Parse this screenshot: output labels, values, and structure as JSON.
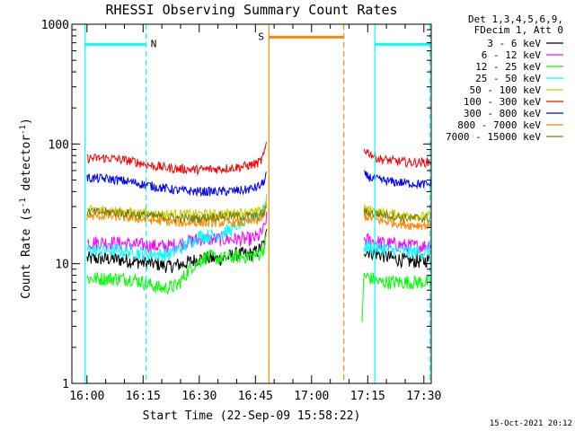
{
  "chart_data": {
    "type": "line",
    "title": "RHESSI Observing Summary Count Rates",
    "xlabel": "Start Time (22-Sep-09 15:58:22)",
    "ylabel_prefix": "Count Rate (s",
    "ylabel_sup1": "-1",
    "ylabel_mid": " detector",
    "ylabel_sup2": "-1",
    "ylabel_suffix": ")",
    "y_scale": "log",
    "ylim": [
      1,
      1000
    ],
    "xlim": [
      -1.6,
      36.5
    ],
    "x_unit": "minutes after 16:00",
    "x_ticks": [
      {
        "value": 0,
        "label": "16:00"
      },
      {
        "value": 15,
        "label": "16:15"
      },
      {
        "value": 30,
        "label": "16:30"
      },
      {
        "value": 45,
        "label": "16:45"
      },
      {
        "value": 60,
        "label": "17:00"
      },
      {
        "value": 75,
        "label": "17:15"
      },
      {
        "value": 90,
        "label": "17:30"
      }
    ],
    "y_ticks": [
      {
        "value": 1,
        "label": "1"
      },
      {
        "value": 10,
        "label": "10"
      },
      {
        "value": 100,
        "label": "100"
      },
      {
        "value": 1000,
        "label": "1000"
      }
    ],
    "legend": {
      "position": "right",
      "header": [
        "Det 1,3,4,5,6,9,",
        "FDecim 1, Att 0"
      ]
    },
    "series": [
      {
        "name": "3 - 6 keV",
        "color": "#000000",
        "segments": [
          {
            "x": [
              0,
              6,
              12,
              18,
              22,
              26,
              30,
              36,
              40,
              44,
              46,
              47.5,
              48
            ],
            "y": [
              11,
              11,
              10.5,
              10,
              9.5,
              10,
              11,
              11,
              12,
              12,
              13,
              15,
              18
            ]
          },
          {
            "x": [
              74,
              78,
              82,
              86,
              90,
              92
            ],
            "y": [
              13,
              12,
              11,
              10.5,
              10.5,
              11
            ]
          }
        ]
      },
      {
        "name": "6 - 12 keV",
        "color": "#ff00ff",
        "segments": [
          {
            "x": [
              0,
              6,
              12,
              18,
              22,
              26,
              30,
              36,
              40,
              44,
              46,
              47.5,
              48
            ],
            "y": [
              15,
              15,
              14.5,
              14,
              14,
              15,
              16,
              16,
              16,
              16,
              17,
              20,
              25
            ]
          },
          {
            "x": [
              74,
              78,
              82,
              86,
              90,
              92
            ],
            "y": [
              16,
              15,
              14.5,
              14,
              14,
              14.5
            ]
          }
        ]
      },
      {
        "name": "12 - 25 keV",
        "color": "#00ff00",
        "segments": [
          {
            "x": [
              0,
              6,
              12,
              18,
              20,
              24,
              28,
              32,
              36,
              40,
              44,
              46,
              47.5,
              48
            ],
            "y": [
              7.5,
              7.5,
              7.5,
              6.5,
              6.2,
              6.5,
              9.5,
              11.5,
              11,
              11.5,
              11.5,
              12,
              14,
              17
            ]
          },
          {
            "x": [
              73.5,
              74,
              76,
              78,
              82,
              86,
              90,
              92
            ],
            "y": [
              3.5,
              8,
              7.5,
              7,
              7,
              7,
              7,
              7
            ]
          }
        ]
      },
      {
        "name": "25 - 50 keV",
        "color": "#00ffff",
        "segments": [
          {
            "x": [
              0,
              6,
              12,
              18,
              22,
              26,
              30,
              34,
              38,
              42,
              44,
              46,
              47.5,
              48
            ],
            "y": [
              13,
              13,
              12.5,
              12,
              12,
              14,
              17,
              17,
              19,
              22,
              24,
              26,
              30,
              35
            ]
          },
          {
            "x": [
              74,
              78,
              82,
              86,
              90,
              92
            ],
            "y": [
              14,
              13.5,
              13,
              12.5,
              12.5,
              13
            ]
          }
        ]
      },
      {
        "name": "50 - 100 keV",
        "color": "#cccc00",
        "segments": [
          {
            "x": [
              0,
              6,
              12,
              18,
              24,
              30,
              36,
              42,
              46,
              47.5,
              48
            ],
            "y": [
              28,
              28,
              27,
              26,
              26,
              26,
              26,
              27,
              27,
              30,
              34
            ]
          },
          {
            "x": [
              74,
              78,
              82,
              86,
              90,
              92
            ],
            "y": [
              29,
              27,
              26,
              25,
              25,
              25.5
            ]
          }
        ]
      },
      {
        "name": "100 - 300 keV",
        "color": "#ff0000",
        "segments": [
          {
            "x": [
              0,
              6,
              12,
              18,
              24,
              30,
              36,
              42,
              45,
              46.5,
              47.5,
              48
            ],
            "y": [
              76,
              76,
              72,
              65,
              62,
              61,
              62,
              65,
              68,
              72,
              85,
              105
            ]
          },
          {
            "x": [
              74,
              76,
              78,
              82,
              86,
              90,
              92
            ],
            "y": [
              90,
              82,
              75,
              72,
              70,
              70,
              71
            ]
          }
        ]
      },
      {
        "name": "300 - 800 keV",
        "color": "#0000ff",
        "segments": [
          {
            "x": [
              0,
              6,
              12,
              18,
              24,
              30,
              36,
              42,
              45,
              46.5,
              47.5,
              48
            ],
            "y": [
              52,
              51,
              48,
              44,
              41,
              40,
              40,
              41,
              43,
              45,
              50,
              58
            ]
          },
          {
            "x": [
              74,
              76,
              78,
              82,
              86,
              90,
              92
            ],
            "y": [
              55,
              52,
              50,
              48,
              47,
              46,
              46
            ]
          }
        ]
      },
      {
        "name": "800 - 7000 keV",
        "color": "#ff8800",
        "segments": [
          {
            "x": [
              0,
              6,
              12,
              18,
              24,
              30,
              36,
              42,
              46,
              47.5,
              48
            ],
            "y": [
              25,
              25,
              24,
              23,
              22,
              22,
              22,
              22,
              23,
              26,
              30
            ]
          },
          {
            "x": [
              74,
              78,
              82,
              86,
              90,
              92
            ],
            "y": [
              25,
              23,
              22,
              21,
              21,
              21
            ]
          }
        ]
      },
      {
        "name": "7000 - 15000 keV",
        "color": "#808000",
        "segments": [
          {
            "x": [
              0,
              6,
              12,
              18,
              24,
              30,
              36,
              42,
              46,
              47.5,
              48
            ],
            "y": [
              27,
              27,
              26,
              25,
              24,
              24,
              25,
              25,
              25,
              27,
              31
            ]
          },
          {
            "x": [
              74,
              78,
              82,
              86,
              90,
              92
            ],
            "y": [
              27,
              26,
              25,
              24,
              24,
              24
            ]
          }
        ]
      }
    ],
    "flags": [
      {
        "label": "N",
        "color": "#00ffff",
        "level": 680,
        "x_start": -0.5,
        "x_end": 15.8,
        "dashed_end": 15.8,
        "solid_start": -0.5
      },
      {
        "label": "S",
        "color": "#ff8800",
        "level": 780,
        "x_start": 48.6,
        "x_end": 68.6,
        "dashed_end": 68.6,
        "solid_start": 48.6
      },
      {
        "label": "",
        "color": "#00ffff",
        "level": 680,
        "x_start": 76.9,
        "x_end": 91.6,
        "dashed_end": 91.6,
        "solid_start": 76.9
      }
    ],
    "grid": false
  },
  "footer": {
    "timestamp": "15-Oct-2021 20:12"
  }
}
